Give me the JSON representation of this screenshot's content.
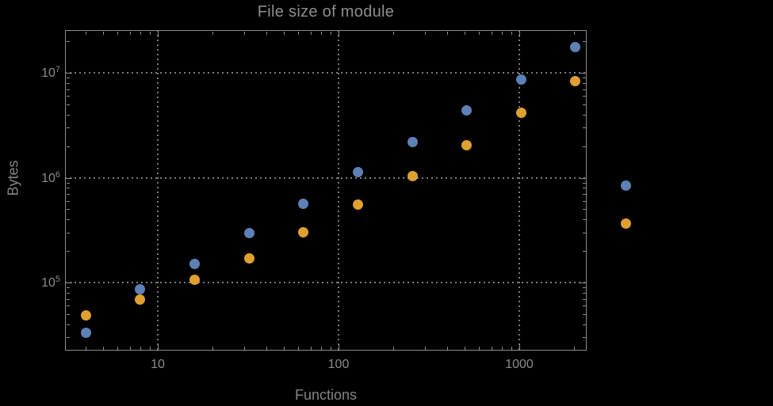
{
  "colors": {
    "background": "#000000",
    "text": "#8e8e8e",
    "frame": "#8c8c8c",
    "gridline": "#7a7a7a",
    "series_blue": "#5e81b5",
    "series_orange": "#e0a030"
  },
  "chart_data": {
    "type": "scatter",
    "title": "File size of module",
    "xlabel": "Functions",
    "ylabel": "Bytes",
    "xscale": "log",
    "yscale": "log",
    "xlim": [
      3.1,
      2360
    ],
    "ylim": [
      22000,
      25600000
    ],
    "grid": "dotted lines at decade ticks, frame ticks on all four sides",
    "legend_position": "none",
    "x_ticks": [
      {
        "value": 10,
        "label": "10"
      },
      {
        "value": 100,
        "label": "100"
      },
      {
        "value": 1000,
        "label": "1000"
      }
    ],
    "y_ticks": [
      {
        "value": 100000,
        "base": "10",
        "exponent": "5"
      },
      {
        "value": 1000000,
        "base": "10",
        "exponent": "6"
      },
      {
        "value": 10000000,
        "base": "10",
        "exponent": "7"
      }
    ],
    "series": [
      {
        "name": "blue-series",
        "color": "#5e81b5",
        "points": [
          [
            4,
            33000
          ],
          [
            8,
            87000
          ],
          [
            16,
            150000
          ],
          [
            32,
            295000
          ],
          [
            64,
            560000
          ],
          [
            128,
            1120000
          ],
          [
            256,
            2200000
          ],
          [
            512,
            4400000
          ],
          [
            1024,
            8600000
          ],
          [
            2048,
            17500000
          ],
          [
            3900,
            840000
          ]
        ]
      },
      {
        "name": "orange-series",
        "color": "#e0a030",
        "points": [
          [
            4,
            49000
          ],
          [
            8,
            69000
          ],
          [
            16,
            106000
          ],
          [
            32,
            170000
          ],
          [
            64,
            300000
          ],
          [
            128,
            550000
          ],
          [
            256,
            1030000
          ],
          [
            512,
            2050000
          ],
          [
            1024,
            4150000
          ],
          [
            2048,
            8300000
          ],
          [
            3900,
            365000
          ]
        ]
      }
    ]
  }
}
